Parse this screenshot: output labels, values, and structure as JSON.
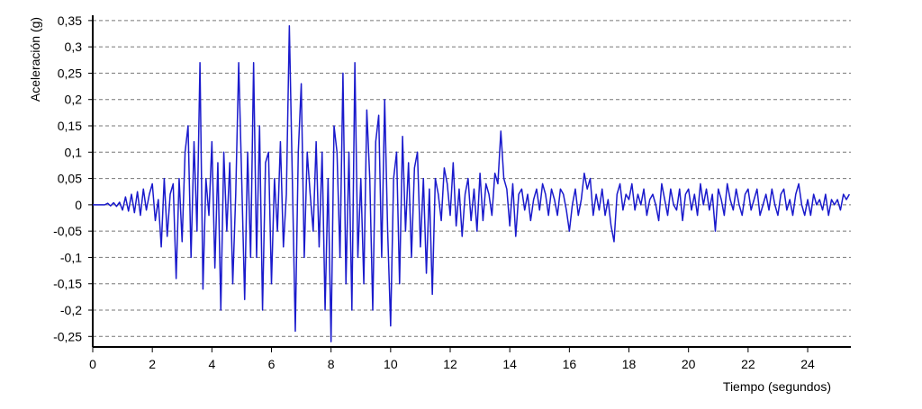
{
  "chart_data": {
    "type": "line",
    "y_label": "Aceleración (g)",
    "x_label": "Tiempo (segundos)",
    "xlim": [
      0,
      25.45
    ],
    "ylim": [
      -0.27,
      0.36
    ],
    "xticks": [
      0,
      2,
      4,
      6,
      8,
      10,
      12,
      14,
      16,
      18,
      20,
      22,
      24
    ],
    "yticks": [
      {
        "value": 0.35,
        "label": "0,35"
      },
      {
        "value": 0.3,
        "label": "0,3"
      },
      {
        "value": 0.25,
        "label": "0,25"
      },
      {
        "value": 0.2,
        "label": "0,2"
      },
      {
        "value": 0.15,
        "label": "0,15"
      },
      {
        "value": 0.1,
        "label": "0,1"
      },
      {
        "value": 0.05,
        "label": "0,05"
      },
      0,
      {
        "value": -0.05,
        "label": "-0,05"
      },
      {
        "value": -0.1,
        "label": "-0,1"
      },
      {
        "value": -0.15,
        "label": "-0,15"
      },
      {
        "value": -0.2,
        "label": "-0,2"
      },
      {
        "value": -0.25,
        "label": "-0,25"
      }
    ],
    "grid": true,
    "x": [
      0,
      0.1,
      0.2,
      0.3,
      0.4,
      0.5,
      0.6,
      0.7,
      0.8,
      0.9,
      1,
      1.1,
      1.2,
      1.3,
      1.4,
      1.5,
      1.6,
      1.7,
      1.8,
      1.9,
      2,
      2.1,
      2.2,
      2.3,
      2.4,
      2.5,
      2.6,
      2.7,
      2.8,
      2.9,
      3,
      3.1,
      3.2,
      3.3,
      3.4,
      3.5,
      3.6,
      3.7,
      3.8,
      3.9,
      4,
      4.1,
      4.2,
      4.3,
      4.4,
      4.5,
      4.6,
      4.7,
      4.8,
      4.9,
      5,
      5.1,
      5.2,
      5.3,
      5.4,
      5.5,
      5.6,
      5.7,
      5.8,
      5.9,
      6,
      6.1,
      6.2,
      6.3,
      6.4,
      6.5,
      6.6,
      6.7,
      6.8,
      6.9,
      7,
      7.1,
      7.2,
      7.3,
      7.4,
      7.5,
      7.6,
      7.7,
      7.8,
      7.9,
      8,
      8.1,
      8.2,
      8.3,
      8.4,
      8.5,
      8.6,
      8.7,
      8.8,
      8.9,
      9,
      9.1,
      9.2,
      9.3,
      9.4,
      9.5,
      9.6,
      9.7,
      9.8,
      9.9,
      10,
      10.1,
      10.2,
      10.3,
      10.4,
      10.5,
      10.6,
      10.7,
      10.8,
      10.9,
      11,
      11.1,
      11.2,
      11.3,
      11.4,
      11.5,
      11.6,
      11.7,
      11.8,
      11.9,
      12,
      12.1,
      12.2,
      12.3,
      12.4,
      12.5,
      12.6,
      12.7,
      12.8,
      12.9,
      13,
      13.1,
      13.2,
      13.3,
      13.4,
      13.5,
      13.6,
      13.7,
      13.8,
      13.9,
      14,
      14.1,
      14.2,
      14.3,
      14.4,
      14.5,
      14.6,
      14.7,
      14.8,
      14.9,
      15,
      15.1,
      15.2,
      15.3,
      15.4,
      15.5,
      15.6,
      15.7,
      15.8,
      15.9,
      16,
      16.1,
      16.2,
      16.3,
      16.4,
      16.5,
      16.6,
      16.7,
      16.8,
      16.9,
      17,
      17.1,
      17.2,
      17.3,
      17.4,
      17.5,
      17.6,
      17.7,
      17.8,
      17.9,
      18,
      18.1,
      18.2,
      18.3,
      18.4,
      18.5,
      18.6,
      18.7,
      18.8,
      18.9,
      19,
      19.1,
      19.2,
      19.3,
      19.4,
      19.5,
      19.6,
      19.7,
      19.8,
      19.9,
      20,
      20.1,
      20.2,
      20.3,
      20.4,
      20.5,
      20.6,
      20.7,
      20.8,
      20.9,
      21,
      21.1,
      21.2,
      21.3,
      21.4,
      21.5,
      21.6,
      21.7,
      21.8,
      21.9,
      22,
      22.1,
      22.2,
      22.3,
      22.4,
      22.5,
      22.6,
      22.7,
      22.8,
      22.9,
      23,
      23.1,
      23.2,
      23.3,
      23.4,
      23.5,
      23.6,
      23.7,
      23.8,
      23.9,
      24,
      24.1,
      24.2,
      24.3,
      24.4,
      24.5,
      24.6,
      24.7,
      24.8,
      24.9,
      25,
      25.1,
      25.2,
      25.3,
      25.4
    ],
    "series": [
      {
        "color": "#1a1acc",
        "values": [
          0,
          0,
          0,
          0,
          0,
          0.003,
          -0.002,
          0.004,
          -0.003,
          0.005,
          -0.01,
          0.015,
          -0.012,
          0.02,
          -0.015,
          0.025,
          -0.02,
          0.03,
          -0.01,
          0.02,
          0.04,
          -0.03,
          0.01,
          -0.08,
          0.05,
          -0.06,
          0.02,
          0.04,
          -0.14,
          0.05,
          -0.07,
          0.1,
          0.15,
          -0.1,
          0.12,
          -0.05,
          0.27,
          -0.16,
          0.05,
          -0.02,
          0.12,
          -0.12,
          0.08,
          -0.2,
          0.1,
          -0.05,
          0.08,
          -0.15,
          0.02,
          0.27,
          0.05,
          -0.18,
          0.1,
          -0.1,
          0.27,
          -0.1,
          0.15,
          -0.2,
          0.08,
          0.1,
          -0.15,
          0.05,
          -0.05,
          0.12,
          -0.08,
          0.02,
          0.34,
          0.05,
          -0.24,
          0.1,
          0.23,
          -0.1,
          0.1,
          0.02,
          -0.05,
          0.12,
          -0.08,
          0.1,
          -0.2,
          0.05,
          -0.26,
          0.15,
          0.1,
          -0.1,
          0.25,
          -0.15,
          0.1,
          -0.2,
          0.27,
          -0.1,
          0.05,
          -0.15,
          0.18,
          0.05,
          -0.2,
          0.12,
          0.17,
          -0.1,
          0.2,
          -0.05,
          -0.23,
          0.05,
          0.1,
          -0.15,
          0.13,
          -0.05,
          0.08,
          -0.1,
          0.07,
          0.1,
          -0.08,
          0.05,
          -0.13,
          0.03,
          -0.17,
          0.05,
          0.02,
          -0.03,
          0.07,
          0.04,
          -0.02,
          0.08,
          -0.04,
          0.03,
          -0.06,
          0.02,
          0.05,
          -0.03,
          0.03,
          -0.05,
          0.06,
          -0.03,
          0.04,
          0.02,
          -0.02,
          0.06,
          0.04,
          0.14,
          0.05,
          0.03,
          -0.04,
          0.04,
          -0.06,
          0.02,
          0.03,
          -0.01,
          0.02,
          -0.03,
          0.01,
          0.03,
          -0.01,
          0.04,
          0.02,
          -0.02,
          0.03,
          0.01,
          -0.02,
          0.03,
          0.02,
          -0.01,
          -0.05,
          0,
          0.03,
          -0.02,
          0.01,
          0.06,
          0.03,
          0.05,
          -0.02,
          0.02,
          -0.01,
          0.03,
          -0.02,
          0.01,
          -0.04,
          -0.07,
          0.02,
          0.04,
          -0.01,
          0.02,
          0.01,
          0.04,
          -0.01,
          0.02,
          0,
          0.03,
          -0.02,
          0.01,
          0.02,
          0,
          -0.03,
          0.04,
          0.01,
          -0.02,
          0.03,
          0,
          -0.01,
          0.03,
          -0.03,
          0.02,
          0.03,
          -0.01,
          0.02,
          -0.02,
          0.04,
          0,
          0.03,
          -0.01,
          0.02,
          -0.05,
          0.03,
          0.01,
          -0.02,
          0.04,
          0.01,
          -0.01,
          0.03,
          0,
          -0.02,
          0.02,
          0.03,
          -0.01,
          0.01,
          0.03,
          -0.02,
          0,
          0.02,
          -0.01,
          0.03,
          0,
          -0.02,
          0.02,
          0.03,
          -0.01,
          0.01,
          -0.02,
          0.02,
          0.04,
          0,
          -0.02,
          0.01,
          -0.02,
          0.02,
          0,
          0.01,
          -0.01,
          0.02,
          -0.02,
          0.01,
          0,
          0.01,
          -0.01,
          0.02,
          0.01,
          0.02
        ]
      }
    ]
  }
}
